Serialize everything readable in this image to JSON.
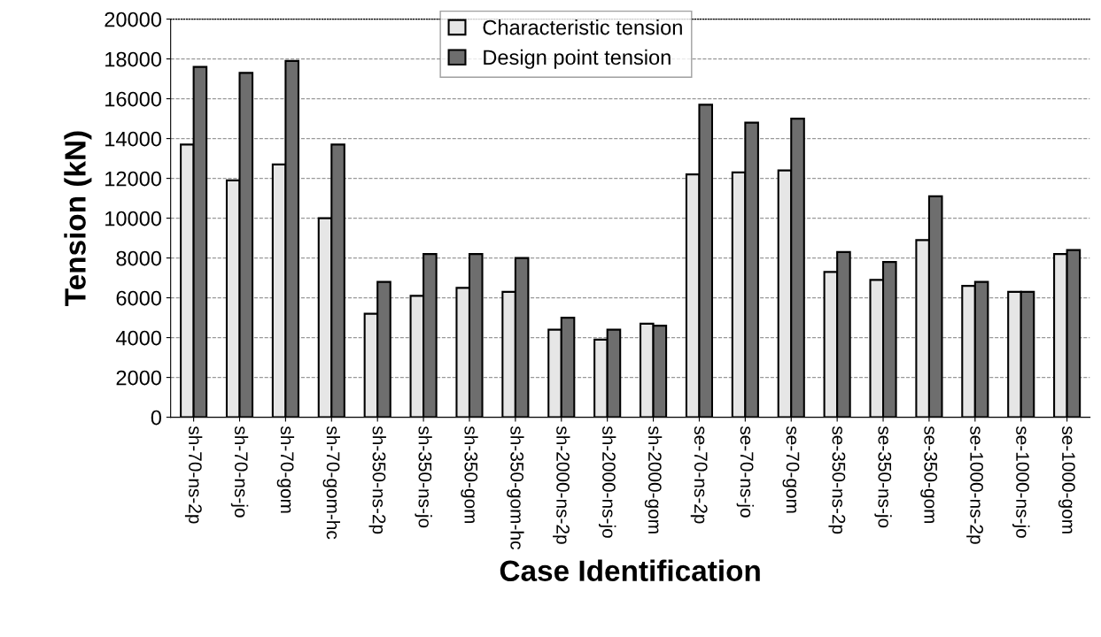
{
  "chart_data": {
    "type": "bar",
    "xlabel": "Case Identification",
    "ylabel": "Tension (kN)",
    "categories": [
      "sh-70-ns-2p",
      "sh-70-ns-jo",
      "sh-70-gom",
      "sh-70-gom-hc",
      "sh-350-ns-2p",
      "sh-350-ns-jo",
      "sh-350-gom",
      "sh-350-gom-hc",
      "sh-2000-ns-2p",
      "sh-2000-ns-jo",
      "sh-2000-gom",
      "se-70-ns-2p",
      "se-70-ns-jo",
      "se-70-gom",
      "se-350-ns-2p",
      "se-350-ns-jo",
      "se-350-gom",
      "se-1000-ns-2p",
      "se-1000-ns-jo",
      "se-1000-gom"
    ],
    "series": [
      {
        "name": "Characteristic tension",
        "color": "#e6e6e6",
        "values": [
          13700,
          11900,
          12700,
          10000,
          5200,
          6100,
          6500,
          6300,
          4400,
          3900,
          4700,
          12200,
          12300,
          12400,
          7300,
          6900,
          8900,
          6600,
          6300,
          8200
        ]
      },
      {
        "name": "Design point tension",
        "color": "#6e6e6e",
        "values": [
          17600,
          17300,
          17900,
          13700,
          6800,
          8200,
          8200,
          8000,
          5000,
          4400,
          4600,
          15700,
          14800,
          15000,
          8300,
          7800,
          11100,
          6800,
          6300,
          8400
        ]
      }
    ],
    "ylim": [
      0,
      20000
    ],
    "yticks": [
      0,
      2000,
      4000,
      6000,
      8000,
      10000,
      12000,
      14000,
      16000,
      18000,
      20000
    ],
    "grid": "y",
    "legend": "top center"
  }
}
